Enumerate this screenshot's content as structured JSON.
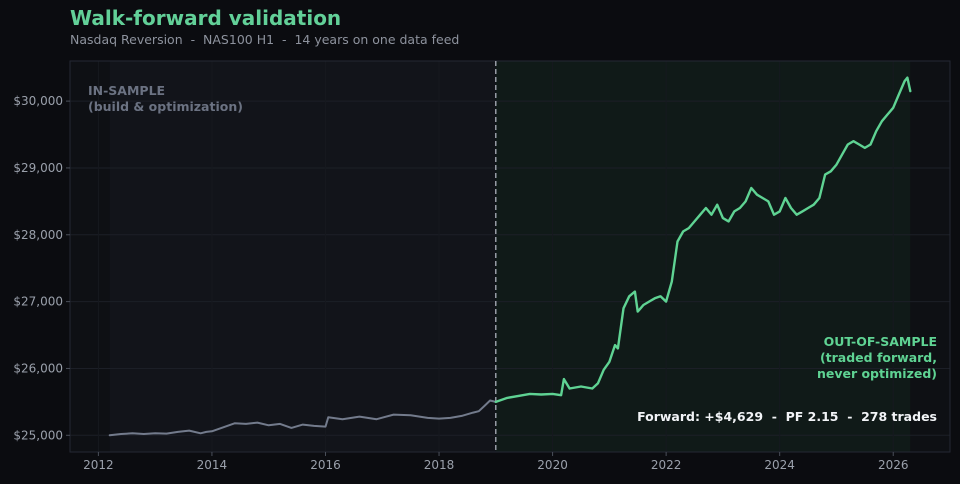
{
  "header": {
    "title": "Walk-forward validation",
    "subtitle": "Nasdaq Reversion  -  NAS100 H1  -  14 years on one data feed"
  },
  "annotations": {
    "in_sample_line1": "IN-SAMPLE",
    "in_sample_line2": "(build & optimization)",
    "oos_line1": "OUT-OF-SAMPLE",
    "oos_line2": "(traded forward,",
    "oos_line3": "never optimized)",
    "forward_stats": "Forward: +$4,629  -  PF 2.15  -  278 trades"
  },
  "colors": {
    "in_sample": "#737b8c",
    "out_of_sample": "#5fd393",
    "accent": "#62d098"
  },
  "chart_data": {
    "type": "line",
    "title": "Walk-forward validation",
    "subtitle": "Nasdaq Reversion  -  NAS100 H1  -  14 years on one data feed",
    "xlabel": "",
    "ylabel": "",
    "xlim": [
      2011.5,
      2027.0
    ],
    "ylim": [
      24750,
      30600
    ],
    "x_ticks": [
      2012,
      2014,
      2016,
      2018,
      2020,
      2022,
      2024,
      2026
    ],
    "x_tick_labels": [
      "2012",
      "2014",
      "2016",
      "2018",
      "2020",
      "2022",
      "2024",
      "2026"
    ],
    "y_ticks": [
      25000,
      26000,
      27000,
      28000,
      29000,
      30000
    ],
    "y_tick_labels": [
      "$25,000",
      "$26,000",
      "$27,000",
      "$28,000",
      "$29,000",
      "$30,000"
    ],
    "split_x": 2019.0,
    "in_sample_range": [
      2012.2,
      2019.0
    ],
    "out_of_sample_range": [
      2019.0,
      2026.3
    ],
    "grid": true,
    "series": [
      {
        "role": "in_sample",
        "x": [
          2012.2,
          2012.4,
          2012.6,
          2012.8,
          2013.0,
          2013.2,
          2013.4,
          2013.6,
          2013.8,
          2013.9,
          2014.0,
          2014.2,
          2014.4,
          2014.6,
          2014.8,
          2015.0,
          2015.2,
          2015.4,
          2015.6,
          2015.8,
          2016.0,
          2016.05,
          2016.3,
          2016.6,
          2016.9,
          2017.2,
          2017.5,
          2017.8,
          2018.0,
          2018.2,
          2018.4,
          2018.6,
          2018.7,
          2018.8,
          2018.9,
          2019.0
        ],
        "y": [
          25000,
          25020,
          25030,
          25020,
          25030,
          25025,
          25050,
          25070,
          25030,
          25050,
          25060,
          25120,
          25180,
          25170,
          25190,
          25150,
          25170,
          25110,
          25160,
          25140,
          25130,
          25270,
          25240,
          25280,
          25240,
          25310,
          25300,
          25260,
          25250,
          25260,
          25290,
          25340,
          25360,
          25440,
          25520,
          25500
        ]
      },
      {
        "role": "out_of_sample",
        "x": [
          2019.0,
          2019.2,
          2019.4,
          2019.6,
          2019.8,
          2020.0,
          2020.15,
          2020.2,
          2020.3,
          2020.5,
          2020.7,
          2020.8,
          2020.9,
          2021.0,
          2021.1,
          2021.15,
          2021.25,
          2021.35,
          2021.45,
          2021.5,
          2021.55,
          2021.6,
          2021.7,
          2021.8,
          2021.9,
          2022.0,
          2022.1,
          2022.2,
          2022.3,
          2022.4,
          2022.5,
          2022.6,
          2022.7,
          2022.8,
          2022.9,
          2023.0,
          2023.1,
          2023.2,
          2023.3,
          2023.4,
          2023.5,
          2023.6,
          2023.7,
          2023.8,
          2023.9,
          2024.0,
          2024.1,
          2024.2,
          2024.3,
          2024.4,
          2024.5,
          2024.6,
          2024.7,
          2024.8,
          2024.9,
          2025.0,
          2025.1,
          2025.2,
          2025.3,
          2025.4,
          2025.5,
          2025.6,
          2025.7,
          2025.8,
          2025.9,
          2026.0,
          2026.1,
          2026.2,
          2026.25,
          2026.3
        ],
        "y": [
          25500,
          25560,
          25590,
          25620,
          25610,
          25620,
          25600,
          25840,
          25700,
          25730,
          25700,
          25780,
          25980,
          26100,
          26350,
          26300,
          26900,
          27080,
          27150,
          26850,
          26900,
          26950,
          27000,
          27050,
          27080,
          27000,
          27300,
          27900,
          28050,
          28100,
          28200,
          28300,
          28400,
          28300,
          28450,
          28250,
          28200,
          28350,
          28400,
          28500,
          28700,
          28600,
          28550,
          28500,
          28300,
          28350,
          28550,
          28400,
          28300,
          28350,
          28400,
          28450,
          28550,
          28900,
          28950,
          29050,
          29200,
          29350,
          29400,
          29350,
          29300,
          29350,
          29550,
          29700,
          29800,
          29900,
          30100,
          30300,
          30350,
          30150
        ]
      }
    ]
  }
}
